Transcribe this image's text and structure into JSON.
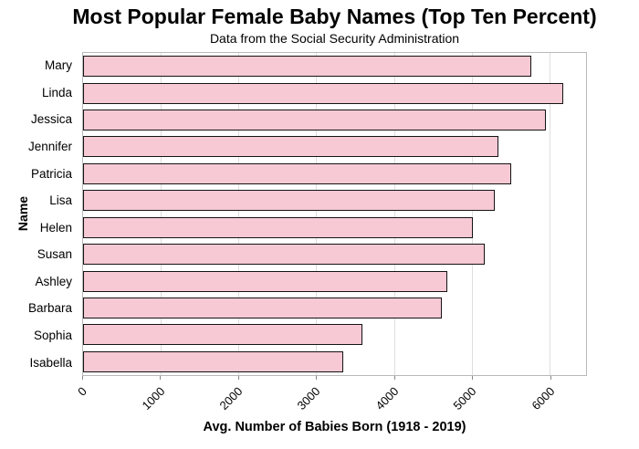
{
  "header": {
    "title": "Most Popular Female Baby Names (Top Ten Percent)",
    "subtitle": "Data from the Social Security Administration"
  },
  "chart_data": {
    "type": "bar",
    "orientation": "horizontal",
    "title": "Most Popular Female Baby Names (Top Ten Percent)",
    "subtitle": "Data from the Social Security Administration",
    "categories": [
      "Mary",
      "Linda",
      "Jessica",
      "Jennifer",
      "Patricia",
      "Lisa",
      "Helen",
      "Susan",
      "Ashley",
      "Barbara",
      "Sophia",
      "Isabella"
    ],
    "values": [
      5770,
      6180,
      5950,
      5340,
      5510,
      5300,
      5010,
      5170,
      4680,
      4610,
      3590,
      3350
    ],
    "xlabel": "Avg. Number of Babies Born (1918 - 2019)",
    "ylabel": "Name",
    "xlim": [
      0,
      6470
    ],
    "xticks": [
      0,
      1000,
      2000,
      3000,
      4000,
      5000,
      6000
    ],
    "grid": "vertical",
    "legend": "none",
    "colors": {
      "bar_fill": "#f6c9d4",
      "bar_border": "#141414",
      "gridline": "#dedede",
      "spine": "#b9b9b9",
      "text": "#000000"
    }
  }
}
